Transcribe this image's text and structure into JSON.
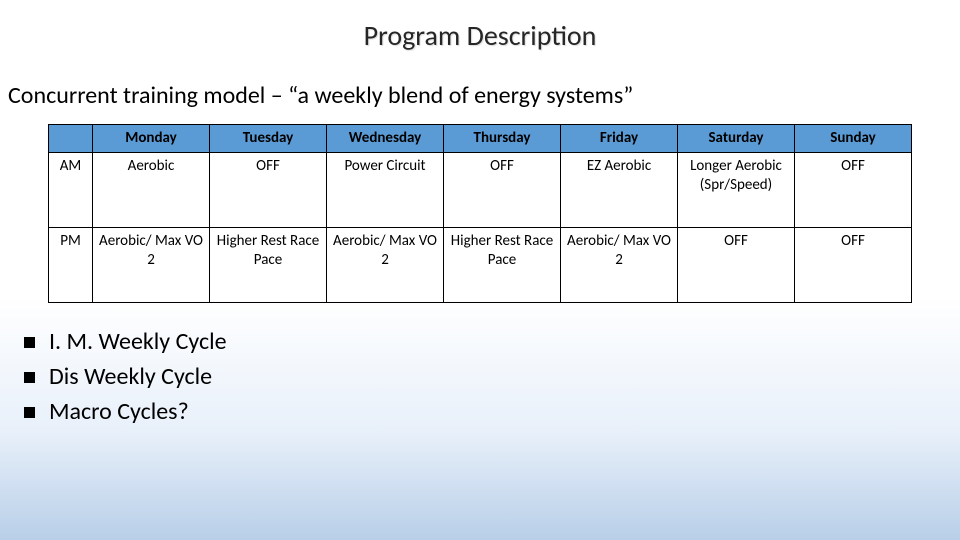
{
  "title": "Program Description",
  "subtitle": "Concurrent training model – “a weekly blend of energy systems”",
  "table": {
    "columns": [
      "Monday",
      "Tuesday",
      "Wednesday",
      "Thursday",
      "Friday",
      "Saturday",
      "Sunday"
    ],
    "rows": [
      {
        "label": "AM",
        "cells": [
          "Aerobic",
          "OFF",
          "Power Circuit",
          "OFF",
          "EZ Aerobic",
          "Longer Aerobic (Spr/Speed)",
          "OFF"
        ]
      },
      {
        "label": "PM",
        "cells": [
          "Aerobic/ Max VO 2",
          "Higher Rest Race Pace",
          "Aerobic/ Max VO 2",
          "Higher Rest Race Pace",
          "Aerobic/ Max VO 2",
          "OFF",
          "OFF"
        ]
      }
    ],
    "header_bg": "#5b9bd5",
    "border_color": "#000000",
    "cell_fontsize": 15,
    "header_fontweight": 700
  },
  "bullets": [
    "I. M. Weekly Cycle",
    "Dis Weekly Cycle",
    "Macro Cycles?"
  ],
  "colors": {
    "title_color": "#262626",
    "text_color": "#000000",
    "gradient_top": "#ffffff",
    "gradient_bottom": "#b8cfe8"
  },
  "fonts": {
    "family": "Calibri",
    "title_size": 28,
    "subtitle_size": 24,
    "bullet_size": 24
  }
}
